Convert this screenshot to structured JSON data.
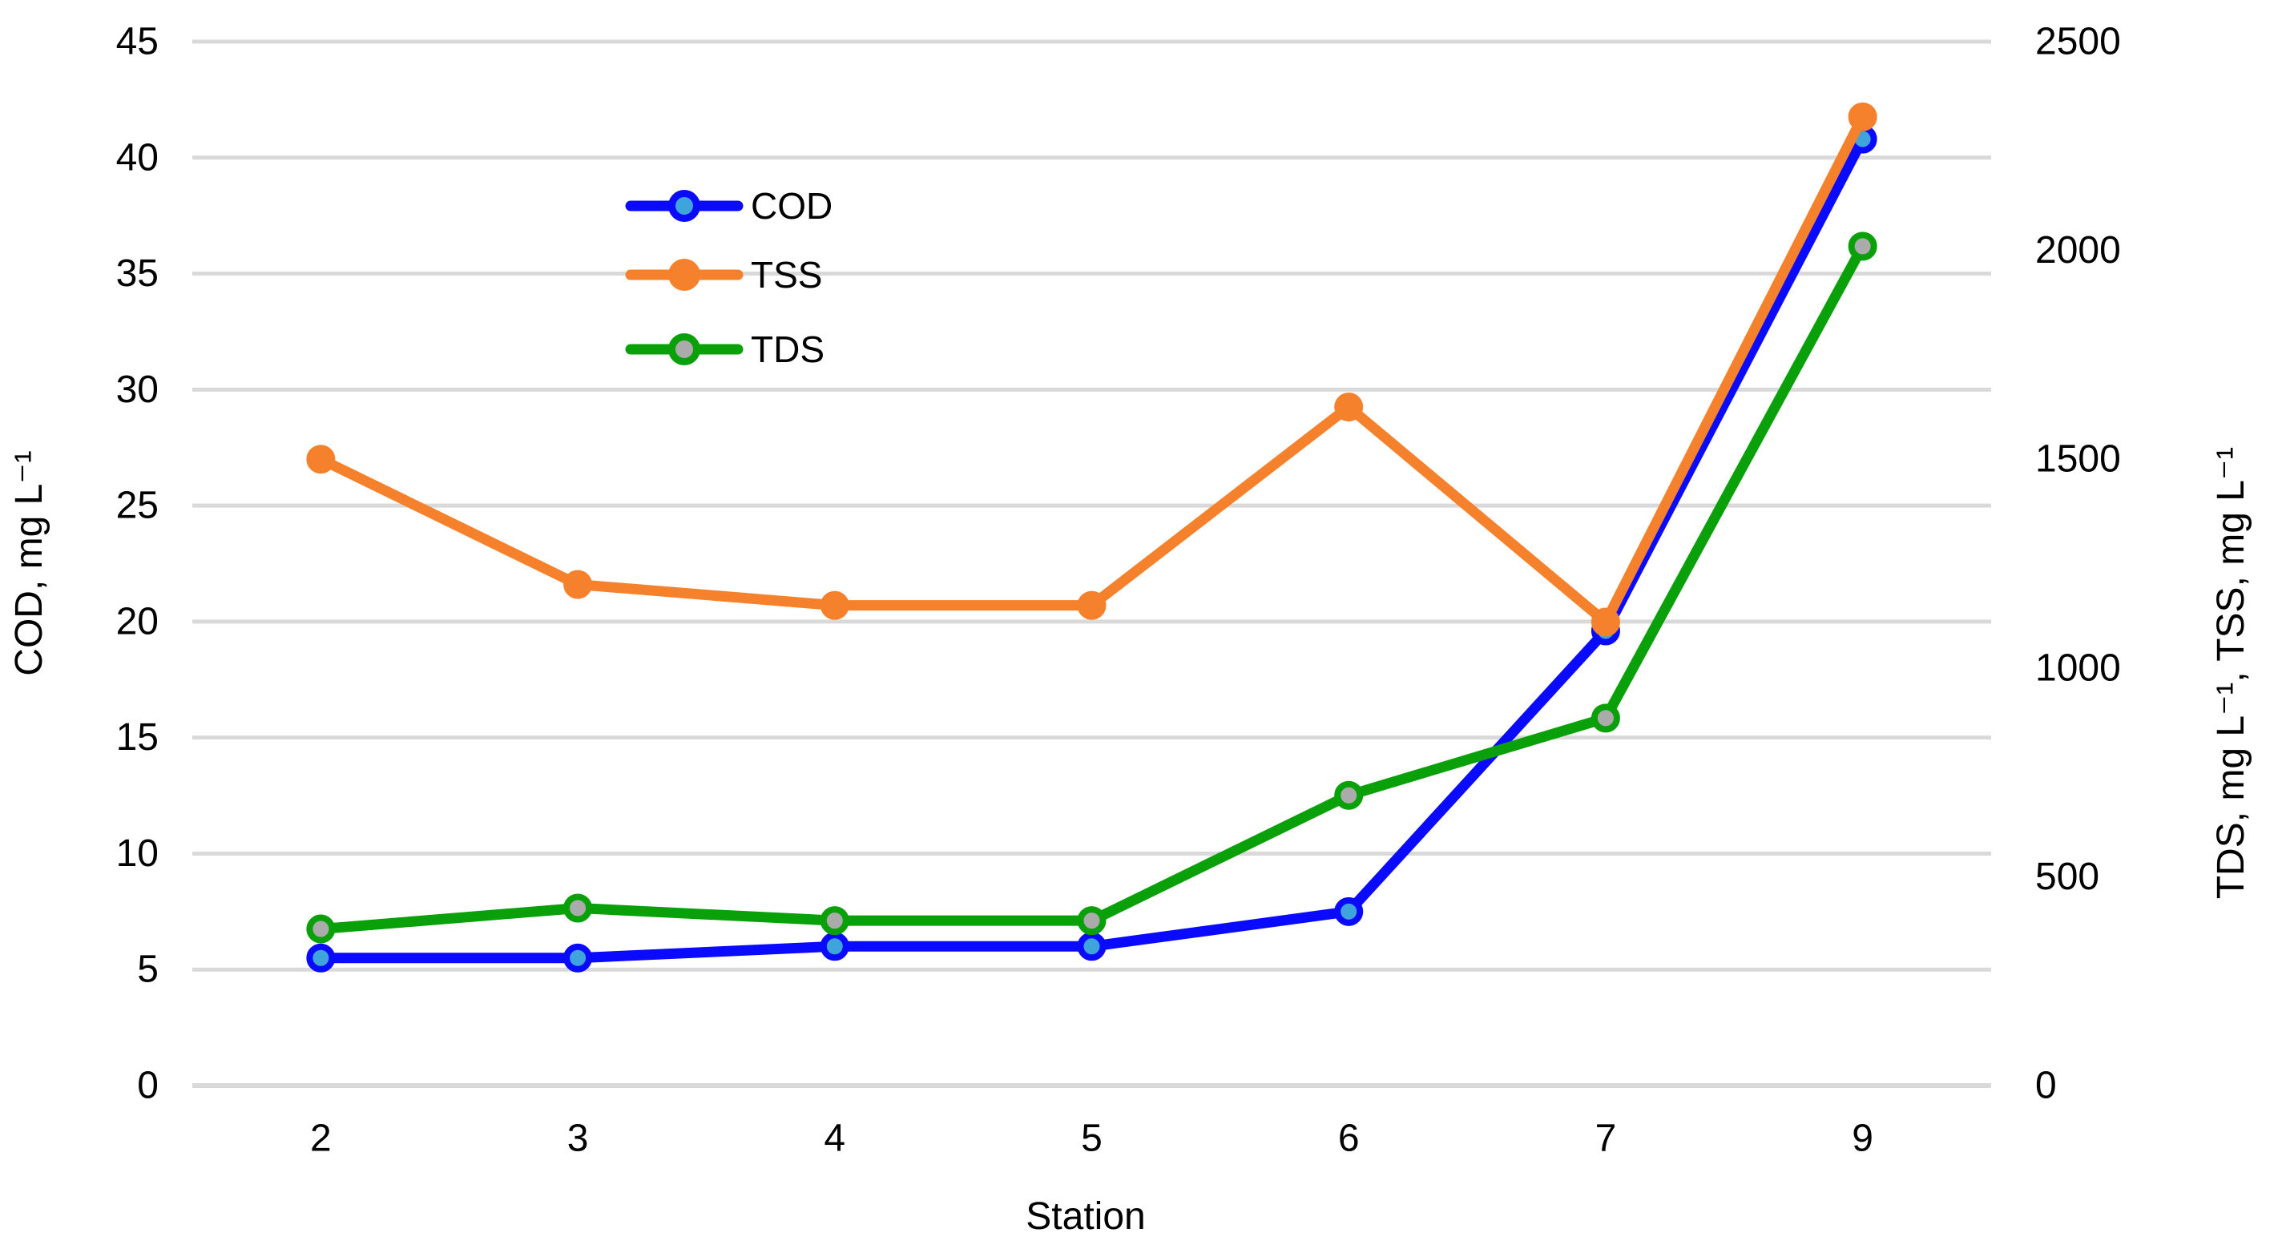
{
  "chart_data": {
    "type": "line",
    "categories": [
      "2",
      "3",
      "4",
      "5",
      "6",
      "7",
      "9"
    ],
    "xlabel": "Station",
    "left_axis": {
      "label": "COD, mg L⁻¹",
      "min": 0,
      "max": 45,
      "tick_step": 5
    },
    "right_axis": {
      "label": "TDS, mg L⁻¹, TSS, mg L⁻¹",
      "min": 0,
      "max": 2500,
      "tick_step": 500
    },
    "left_ticks": [
      "0",
      "5",
      "10",
      "15",
      "20",
      "25",
      "30",
      "35",
      "40",
      "45"
    ],
    "right_ticks": [
      "0",
      "500",
      "1000",
      "1500",
      "2000",
      "2500"
    ],
    "grid": true,
    "gridline_color": "#D9D9D9",
    "text_color": "#000000",
    "legend": {
      "position": "inside-upper-left",
      "order": [
        "COD",
        "TSS",
        "TDS"
      ]
    },
    "series": [
      {
        "name": "COD",
        "axis": "left",
        "values": [
          5.5,
          5.5,
          6.0,
          6.0,
          7.5,
          19.6,
          40.8
        ],
        "line_color": "#0A0AFF",
        "marker_fill": "#3FA3DC",
        "marker_stroke": "#0A0AFF"
      },
      {
        "name": "TSS",
        "axis": "right",
        "values": [
          1500,
          1200,
          1150,
          1150,
          1625,
          1110,
          2320
        ],
        "line_color": "#F6812D",
        "marker_fill": "#F6812D",
        "marker_stroke": "#F6812D"
      },
      {
        "name": "TDS",
        "axis": "right",
        "values": [
          375,
          425,
          395,
          395,
          695,
          880,
          2010
        ],
        "line_color": "#0AA00A",
        "marker_fill": "#ABABAB",
        "marker_stroke": "#0AA00A"
      }
    ]
  }
}
